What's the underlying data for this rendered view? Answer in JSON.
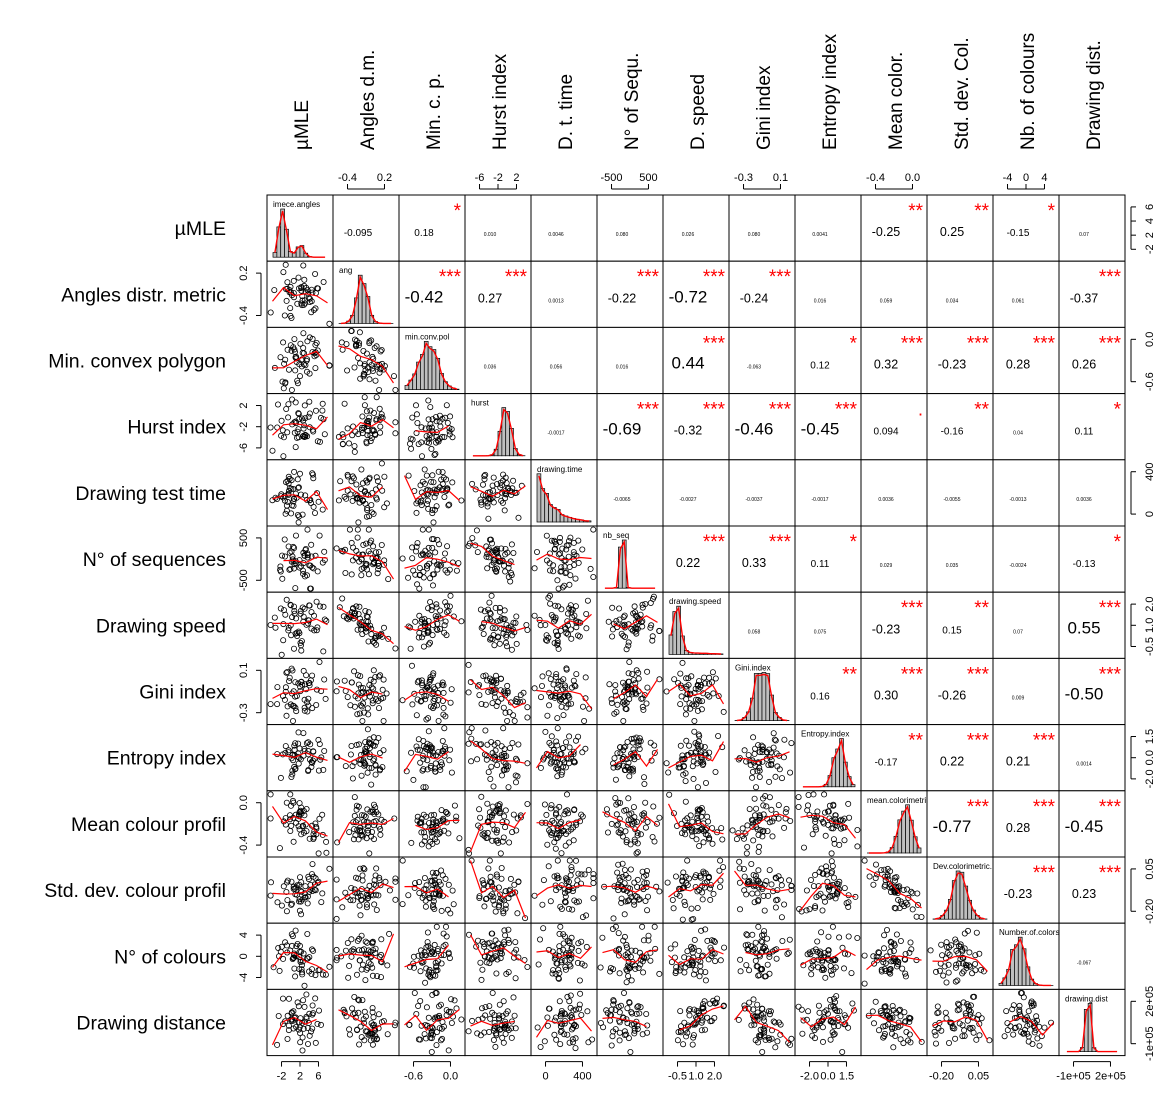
{
  "chart_data": {
    "type": "scatter",
    "subtype": "correlation-matrix",
    "variables": [
      {
        "col_header": "µMLE",
        "row_label": "µMLE",
        "hist_name": "imece.angles"
      },
      {
        "col_header": "Angles d.m.",
        "row_label": "Angles distr. metric",
        "hist_name": "ang"
      },
      {
        "col_header": "Min. c. p.",
        "row_label": "Min. convex polygon",
        "hist_name": "min.conv.pol"
      },
      {
        "col_header": "Hurst index",
        "row_label": "Hurst index",
        "hist_name": "hurst"
      },
      {
        "col_header": "D. t. time",
        "row_label": "Drawing test time",
        "hist_name": "drawing.time"
      },
      {
        "col_header": "N° of Sequ.",
        "row_label": "N° of sequences",
        "hist_name": "nb_seq"
      },
      {
        "col_header": "D. speed",
        "row_label": "Drawing speed",
        "hist_name": "drawing.speed"
      },
      {
        "col_header": "Gini index",
        "row_label": "Gini index",
        "hist_name": "Gini.index"
      },
      {
        "col_header": "Entropy index",
        "row_label": "Entropy index",
        "hist_name": "Entropy.index"
      },
      {
        "col_header": "Mean color.",
        "row_label": "Mean colour profil",
        "hist_name": "mean.colorimetric.pr"
      },
      {
        "col_header": "Std. dev. Col.",
        "row_label": "Std. dev. colour profil",
        "hist_name": "Dev.colorimetric.p"
      },
      {
        "col_header": "Nb. of colours",
        "row_label": "N° of colours",
        "hist_name": "Number.of.colors"
      },
      {
        "col_header": "Drawing dist.",
        "row_label": "Drawing distance",
        "hist_name": "drawing.dist"
      }
    ],
    "correlations": [
      {
        "row": 0,
        "col": 1,
        "r": "-0.095",
        "stars": ""
      },
      {
        "row": 0,
        "col": 2,
        "r": "0.18",
        "stars": "*"
      },
      {
        "row": 0,
        "col": 3,
        "r": "0.010",
        "stars": ""
      },
      {
        "row": 0,
        "col": 4,
        "r": "0.0046",
        "stars": ""
      },
      {
        "row": 0,
        "col": 5,
        "r": "0.080",
        "stars": ""
      },
      {
        "row": 0,
        "col": 6,
        "r": "0.026",
        "stars": ""
      },
      {
        "row": 0,
        "col": 7,
        "r": "0.080",
        "stars": ""
      },
      {
        "row": 0,
        "col": 8,
        "r": "0.0041",
        "stars": ""
      },
      {
        "row": 0,
        "col": 9,
        "r": "-0.25",
        "stars": "**"
      },
      {
        "row": 0,
        "col": 10,
        "r": "0.25",
        "stars": "**"
      },
      {
        "row": 0,
        "col": 11,
        "r": "-0.15",
        "stars": "*"
      },
      {
        "row": 0,
        "col": 12,
        "r": "0.07",
        "stars": ""
      },
      {
        "row": 1,
        "col": 2,
        "r": "-0.42",
        "stars": "***"
      },
      {
        "row": 1,
        "col": 3,
        "r": "0.27",
        "stars": "***"
      },
      {
        "row": 1,
        "col": 4,
        "r": "0.0013",
        "stars": ""
      },
      {
        "row": 1,
        "col": 5,
        "r": "-0.22",
        "stars": "***"
      },
      {
        "row": 1,
        "col": 6,
        "r": "-0.72",
        "stars": "***"
      },
      {
        "row": 1,
        "col": 7,
        "r": "-0.24",
        "stars": "***"
      },
      {
        "row": 1,
        "col": 8,
        "r": "0.016",
        "stars": ""
      },
      {
        "row": 1,
        "col": 9,
        "r": "0.059",
        "stars": ""
      },
      {
        "row": 1,
        "col": 10,
        "r": "0.034",
        "stars": ""
      },
      {
        "row": 1,
        "col": 11,
        "r": "0.061",
        "stars": ""
      },
      {
        "row": 1,
        "col": 12,
        "r": "-0.37",
        "stars": "***"
      },
      {
        "row": 2,
        "col": 3,
        "r": "0.036",
        "stars": ""
      },
      {
        "row": 2,
        "col": 4,
        "r": "0.056",
        "stars": ""
      },
      {
        "row": 2,
        "col": 5,
        "r": "0.016",
        "stars": ""
      },
      {
        "row": 2,
        "col": 6,
        "r": "0.44",
        "stars": "***"
      },
      {
        "row": 2,
        "col": 7,
        "r": "-0.063",
        "stars": ""
      },
      {
        "row": 2,
        "col": 8,
        "r": "0.12",
        "stars": "*"
      },
      {
        "row": 2,
        "col": 9,
        "r": "0.32",
        "stars": "***"
      },
      {
        "row": 2,
        "col": 10,
        "r": "-0.23",
        "stars": "***"
      },
      {
        "row": 2,
        "col": 11,
        "r": "0.28",
        "stars": "***"
      },
      {
        "row": 2,
        "col": 12,
        "r": "0.26",
        "stars": "***"
      },
      {
        "row": 3,
        "col": 4,
        "r": "-0.0017",
        "stars": ""
      },
      {
        "row": 3,
        "col": 5,
        "r": "-0.69",
        "stars": "***"
      },
      {
        "row": 3,
        "col": 6,
        "r": "-0.32",
        "stars": "***"
      },
      {
        "row": 3,
        "col": 7,
        "r": "-0.46",
        "stars": "***"
      },
      {
        "row": 3,
        "col": 8,
        "r": "-0.45",
        "stars": "***"
      },
      {
        "row": 3,
        "col": 9,
        "r": "0.094",
        "stars": "."
      },
      {
        "row": 3,
        "col": 10,
        "r": "-0.16",
        "stars": "**"
      },
      {
        "row": 3,
        "col": 11,
        "r": "0.04",
        "stars": ""
      },
      {
        "row": 3,
        "col": 12,
        "r": "0.11",
        "stars": "*"
      },
      {
        "row": 4,
        "col": 5,
        "r": "-0.0065",
        "stars": ""
      },
      {
        "row": 4,
        "col": 6,
        "r": "-0.0027",
        "stars": ""
      },
      {
        "row": 4,
        "col": 7,
        "r": "-0.0037",
        "stars": ""
      },
      {
        "row": 4,
        "col": 8,
        "r": "-0.0017",
        "stars": ""
      },
      {
        "row": 4,
        "col": 9,
        "r": "0.0036",
        "stars": ""
      },
      {
        "row": 4,
        "col": 10,
        "r": "-0.0055",
        "stars": ""
      },
      {
        "row": 4,
        "col": 11,
        "r": "-0.0013",
        "stars": ""
      },
      {
        "row": 4,
        "col": 12,
        "r": "0.0036",
        "stars": ""
      },
      {
        "row": 5,
        "col": 6,
        "r": "0.22",
        "stars": "***"
      },
      {
        "row": 5,
        "col": 7,
        "r": "0.33",
        "stars": "***"
      },
      {
        "row": 5,
        "col": 8,
        "r": "0.11",
        "stars": "*"
      },
      {
        "row": 5,
        "col": 9,
        "r": "0.029",
        "stars": ""
      },
      {
        "row": 5,
        "col": 10,
        "r": "0.035",
        "stars": ""
      },
      {
        "row": 5,
        "col": 11,
        "r": "-0.0024",
        "stars": ""
      },
      {
        "row": 5,
        "col": 12,
        "r": "-0.13",
        "stars": "*"
      },
      {
        "row": 6,
        "col": 7,
        "r": "0.058",
        "stars": ""
      },
      {
        "row": 6,
        "col": 8,
        "r": "0.075",
        "stars": ""
      },
      {
        "row": 6,
        "col": 9,
        "r": "-0.23",
        "stars": "***"
      },
      {
        "row": 6,
        "col": 10,
        "r": "0.15",
        "stars": "**"
      },
      {
        "row": 6,
        "col": 11,
        "r": "0.07",
        "stars": ""
      },
      {
        "row": 6,
        "col": 12,
        "r": "0.55",
        "stars": "***"
      },
      {
        "row": 7,
        "col": 8,
        "r": "0.16",
        "stars": "**"
      },
      {
        "row": 7,
        "col": 9,
        "r": "0.30",
        "stars": "***"
      },
      {
        "row": 7,
        "col": 10,
        "r": "-0.26",
        "stars": "***"
      },
      {
        "row": 7,
        "col": 11,
        "r": "0.009",
        "stars": ""
      },
      {
        "row": 7,
        "col": 12,
        "r": "-0.50",
        "stars": "***"
      },
      {
        "row": 8,
        "col": 9,
        "r": "-0.17",
        "stars": "**"
      },
      {
        "row": 8,
        "col": 10,
        "r": "0.22",
        "stars": "***"
      },
      {
        "row": 8,
        "col": 11,
        "r": "0.21",
        "stars": "***"
      },
      {
        "row": 8,
        "col": 12,
        "r": "0.0014",
        "stars": ""
      },
      {
        "row": 9,
        "col": 10,
        "r": "-0.77",
        "stars": "***"
      },
      {
        "row": 9,
        "col": 11,
        "r": "0.28",
        "stars": "***"
      },
      {
        "row": 9,
        "col": 12,
        "r": "-0.45",
        "stars": "***"
      },
      {
        "row": 10,
        "col": 11,
        "r": "-0.23",
        "stars": "***"
      },
      {
        "row": 10,
        "col": 12,
        "r": "0.23",
        "stars": "***"
      },
      {
        "row": 11,
        "col": 12,
        "r": "-0.067",
        "stars": ""
      }
    ],
    "top_ticks": [
      {
        "col": 1,
        "labels": [
          "-0.4",
          "0.2"
        ]
      },
      {
        "col": 3,
        "labels": [
          "-6",
          "-2",
          "2"
        ]
      },
      {
        "col": 5,
        "labels": [
          "-500",
          "500"
        ]
      },
      {
        "col": 7,
        "labels": [
          "-0.3",
          "0.1"
        ]
      },
      {
        "col": 9,
        "labels": [
          "-0.4",
          "0.0"
        ]
      },
      {
        "col": 11,
        "labels": [
          "-4",
          "0",
          "4"
        ]
      }
    ],
    "bottom_ticks": [
      {
        "col": 0,
        "labels": [
          "-2",
          "2",
          "6"
        ]
      },
      {
        "col": 2,
        "labels": [
          "-0.6",
          "0.0"
        ]
      },
      {
        "col": 4,
        "labels": [
          "0",
          "400"
        ]
      },
      {
        "col": 6,
        "labels": [
          "-0.5",
          "1.0",
          "2.0"
        ]
      },
      {
        "col": 8,
        "labels": [
          "-2.0",
          "0.0",
          "1.5"
        ]
      },
      {
        "col": 10,
        "labels": [
          "-0.20",
          "0.05"
        ]
      },
      {
        "col": 12,
        "labels": [
          "-1e+05",
          "2e+05"
        ]
      }
    ],
    "left_ticks": [
      {
        "row": 1,
        "labels": [
          "0.2",
          "-0.4"
        ]
      },
      {
        "row": 3,
        "labels": [
          "2",
          "-2",
          "-6"
        ]
      },
      {
        "row": 5,
        "labels": [
          "500",
          "-500"
        ]
      },
      {
        "row": 7,
        "labels": [
          "0.1",
          "-0.3"
        ]
      },
      {
        "row": 9,
        "labels": [
          "0.0",
          "-0.4"
        ]
      },
      {
        "row": 11,
        "labels": [
          "4",
          "0",
          "-4"
        ]
      }
    ],
    "right_ticks": [
      {
        "row": 0,
        "labels": [
          "6",
          "4",
          "2",
          "-2"
        ]
      },
      {
        "row": 2,
        "labels": [
          "0.0",
          "-0.6"
        ]
      },
      {
        "row": 4,
        "labels": [
          "400",
          "0"
        ]
      },
      {
        "row": 6,
        "labels": [
          "2.0",
          "1.0",
          "-0.5"
        ]
      },
      {
        "row": 8,
        "labels": [
          "1.5",
          "0.0",
          "-2.0"
        ]
      },
      {
        "row": 10,
        "labels": [
          "0.05",
          "-0.20"
        ]
      },
      {
        "row": 12,
        "labels": [
          "2e+05",
          "-1e+05"
        ]
      }
    ],
    "colors": {
      "stars": "#ff0000",
      "smooth": "#ff0000",
      "density": "#ff0000",
      "bars": "#bfbfbf",
      "frame": "#000000",
      "points": "#000000"
    }
  }
}
